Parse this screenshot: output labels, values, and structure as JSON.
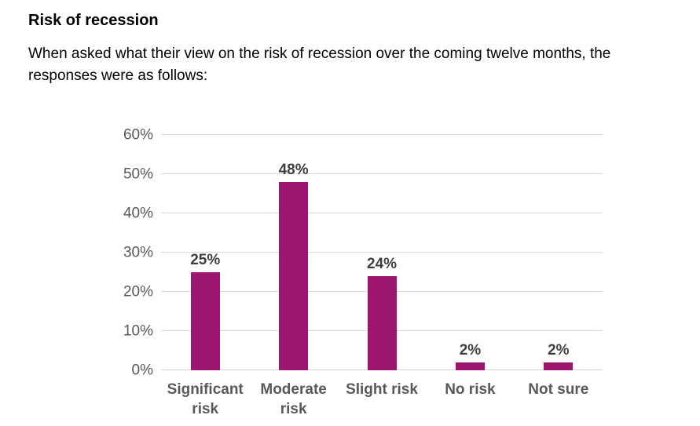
{
  "page": {
    "title": "Risk of recession",
    "intro": "When asked what their view on the risk of recession over the coming twelve months, the responses were as follows:"
  },
  "chart_data": {
    "type": "bar",
    "title": "",
    "xlabel": "",
    "ylabel": "",
    "categories": [
      "Significant risk",
      "Moderate risk",
      "Slight risk",
      "No risk",
      "Not sure"
    ],
    "values": [
      25,
      48,
      24,
      2,
      2
    ],
    "value_labels": [
      "25%",
      "48%",
      "24%",
      "2%",
      "2%"
    ],
    "y_ticks": [
      {
        "label": "0%",
        "value": 0
      },
      {
        "label": "10%",
        "value": 10
      },
      {
        "label": "20%",
        "value": 20
      },
      {
        "label": "30%",
        "value": 30
      },
      {
        "label": "40%",
        "value": 40
      },
      {
        "label": "50%",
        "value": 50
      },
      {
        "label": "60%",
        "value": 60
      }
    ],
    "ylim": [
      0,
      60
    ],
    "grid": "horizontal",
    "legend_position": "none",
    "colors": {
      "bar": "#9c156e",
      "gridline": "#d9d9d9",
      "baseline": "#cfcfcf",
      "tick_label": "#595959",
      "value_label": "#3f3f3f",
      "category_label": "#595959"
    }
  }
}
